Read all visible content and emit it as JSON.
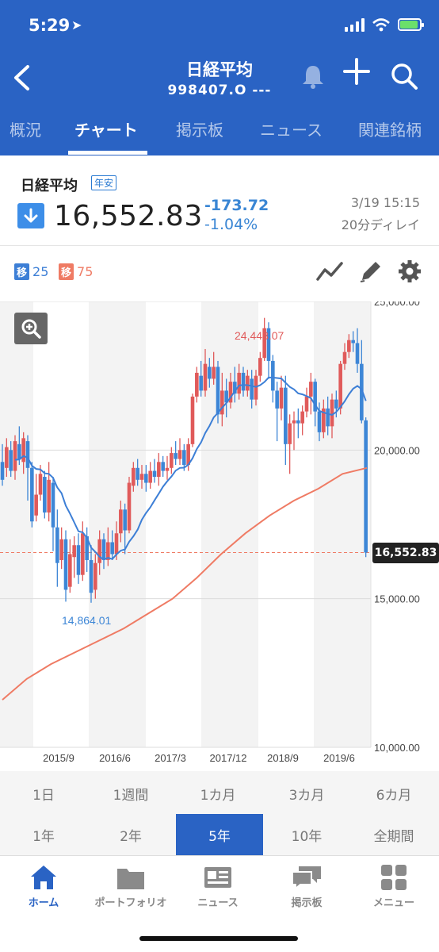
{
  "status": {
    "time": "5:29"
  },
  "header": {
    "back_icon": "chevron-left-icon",
    "title": "日経平均",
    "code": "998407.O ---"
  },
  "tabs": [
    {
      "label": "概況",
      "active": false
    },
    {
      "label": "チャート",
      "active": true
    },
    {
      "label": "掲示板",
      "active": false
    },
    {
      "label": "ニュース",
      "active": false
    },
    {
      "label": "関連銘柄",
      "active": false
    }
  ],
  "quote": {
    "name": "日経平均",
    "badge": "年安",
    "price": "16,552.83",
    "change": "-173.72",
    "change_pct": "-1.04%",
    "datetime": "3/19 15:15",
    "delay": "20分ディレイ"
  },
  "ma_legend": [
    {
      "tag": "移",
      "period": "25",
      "color": "#3d7fd6"
    },
    {
      "tag": "移",
      "period": "75",
      "color": "#ef7b64"
    }
  ],
  "chart_data": {
    "type": "candlestick",
    "y_ticks": [
      "25,000.00",
      "20,000.00",
      "15,000.00",
      "10,000.00"
    ],
    "ylim": [
      10000,
      25000
    ],
    "x_ticks": [
      "2015/9",
      "2016/6",
      "2017/3",
      "2017/12",
      "2018/9",
      "2019/6"
    ],
    "annotations": {
      "high": "24,448.07",
      "low": "14,864.01",
      "last": "16,552.83"
    },
    "colors": {
      "up": "#e05a5a",
      "down": "#3d86d6",
      "ma25": "#3d7fd6",
      "ma75": "#ef7b64"
    }
  },
  "periods": {
    "row1": [
      "1日",
      "1週間",
      "1カ月",
      "3カ月",
      "6カ月"
    ],
    "row2": [
      "1年",
      "2年",
      "5年",
      "10年",
      "全期間"
    ],
    "active": "5年"
  },
  "bottom_nav": [
    {
      "label": "ホーム",
      "icon": "home-icon",
      "active": true
    },
    {
      "label": "ポートフォリオ",
      "icon": "folder-icon",
      "active": false
    },
    {
      "label": "ニュース",
      "icon": "newspaper-icon",
      "active": false
    },
    {
      "label": "掲示板",
      "icon": "chat-icon",
      "active": false
    },
    {
      "label": "メニュー",
      "icon": "grid-icon",
      "active": false
    }
  ]
}
